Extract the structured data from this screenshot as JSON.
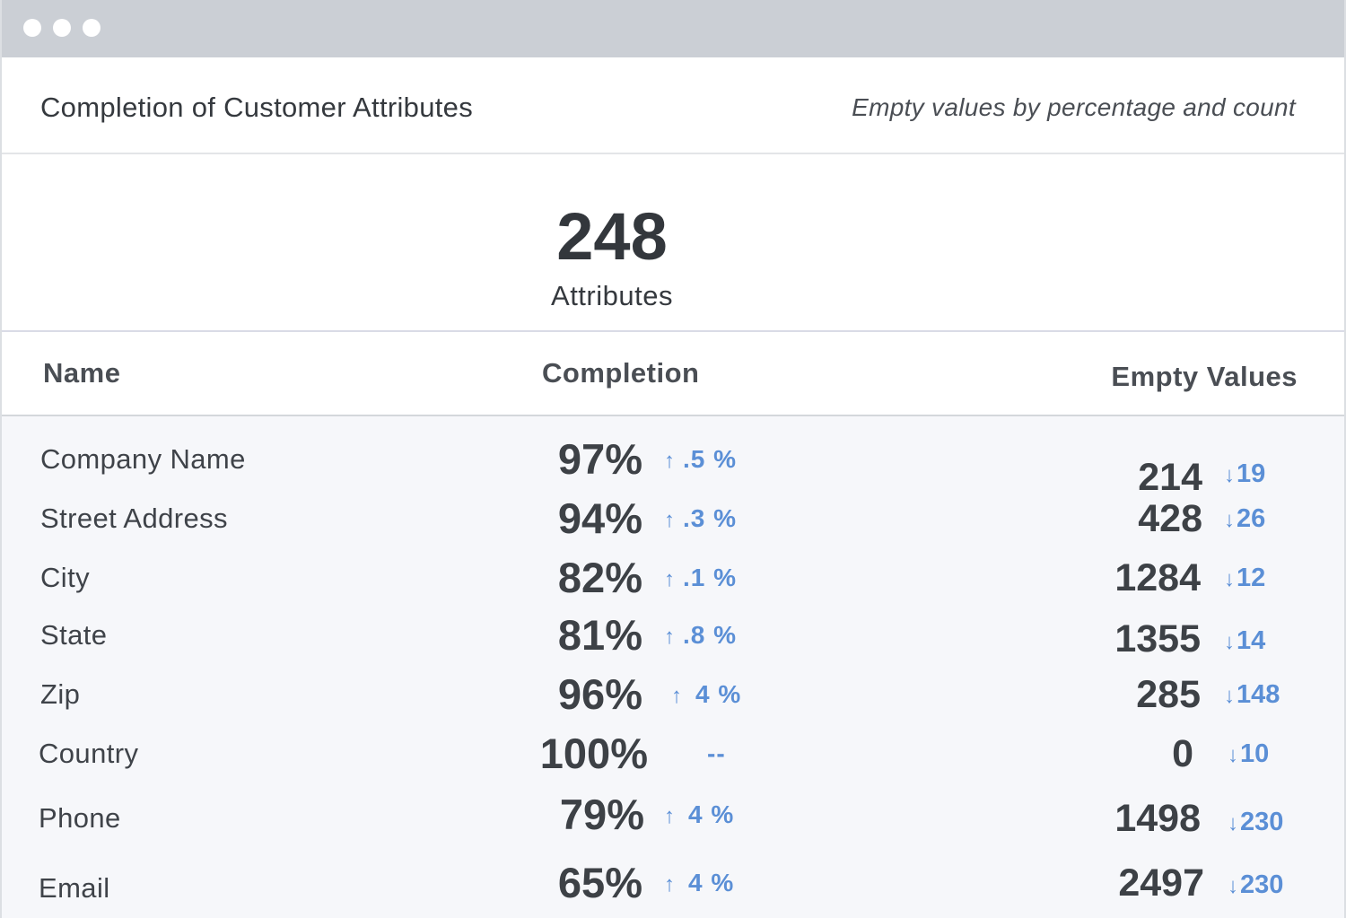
{
  "window": {
    "controls": [
      "window-dot",
      "window-dot",
      "window-dot"
    ]
  },
  "header": {
    "title": "Completion of Customer Attributes",
    "subtitle": "Empty values by percentage and count"
  },
  "summary": {
    "value": "248",
    "label": "Attributes"
  },
  "table": {
    "columns": {
      "name": "Name",
      "completion": "Completion",
      "empty": "Empty Values"
    },
    "rows": [
      {
        "name": "Company Name",
        "completion": "97%",
        "completion_arrow": "↑",
        "completion_delta": ".5 %",
        "empty": "214",
        "empty_arrow": "↓",
        "empty_delta": "19"
      },
      {
        "name": "Street Address",
        "completion": "94%",
        "completion_arrow": "↑",
        "completion_delta": ".3 %",
        "empty": "428",
        "empty_arrow": "↓",
        "empty_delta": "26"
      },
      {
        "name": "City",
        "completion": "82%",
        "completion_arrow": "↑",
        "completion_delta": ".1 %",
        "empty": "1284",
        "empty_arrow": "↓",
        "empty_delta": "12"
      },
      {
        "name": "State",
        "completion": "81%",
        "completion_arrow": "↑",
        "completion_delta": ".8 %",
        "empty": "1355",
        "empty_arrow": "↓",
        "empty_delta": "14"
      },
      {
        "name": "Zip",
        "completion": "96%",
        "completion_arrow": "↑",
        "completion_delta": "4 %",
        "empty": "285",
        "empty_arrow": "↓",
        "empty_delta": "148"
      },
      {
        "name": "Country",
        "completion": "100%",
        "completion_arrow": "",
        "completion_delta": "--",
        "empty": "0",
        "empty_arrow": "↓",
        "empty_delta": "10"
      },
      {
        "name": "Phone",
        "completion": "79%",
        "completion_arrow": "↑",
        "completion_delta": "4 %",
        "empty": "1498",
        "empty_arrow": "↓",
        "empty_delta": "230"
      },
      {
        "name": "Email",
        "completion": "65%",
        "completion_arrow": "↑",
        "completion_delta": "4 %",
        "empty": "2497",
        "empty_arrow": "↓",
        "empty_delta": "230"
      }
    ]
  },
  "colors": {
    "titlebar": "#cbcfd5",
    "accent": "#5b8fd6",
    "text": "#3b3f45",
    "table_bg": "#f6f7fa"
  }
}
